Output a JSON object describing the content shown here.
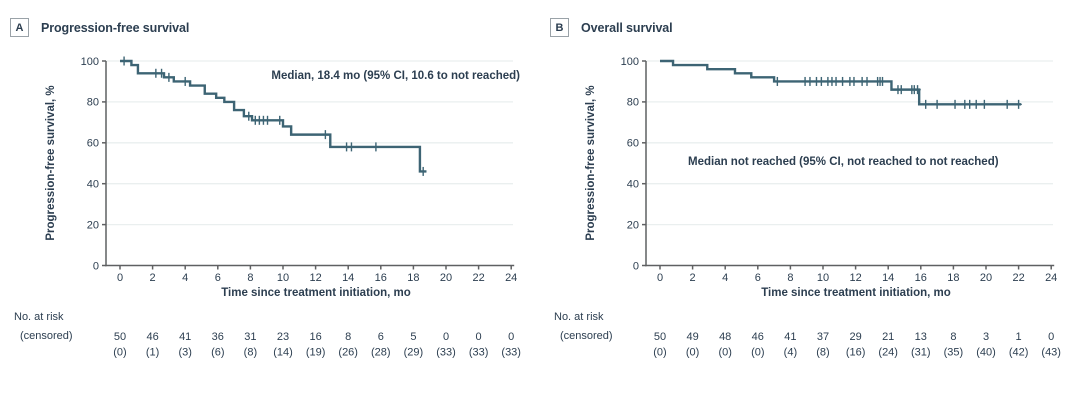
{
  "chart_data": [
    {
      "type": "line",
      "subtype": "kaplan-meier-step",
      "panel_label": "A",
      "title": "Progression-free survival",
      "annotation": "Median, 18.4 mo (95% CI, 10.6 to not reached)",
      "ylabel": "Progression-free survival, %",
      "xlabel": "Time since treatment initiation, mo",
      "xlim": [
        0,
        24
      ],
      "ylim": [
        0,
        100
      ],
      "xticks": [
        0,
        2,
        4,
        6,
        8,
        10,
        12,
        14,
        16,
        18,
        20,
        22,
        24
      ],
      "yticks": [
        0,
        20,
        40,
        60,
        80,
        100
      ],
      "grid": "horizontal-light",
      "line_color": "#3d6474",
      "steps": [
        [
          0,
          100
        ],
        [
          0.7,
          98
        ],
        [
          1.1,
          94
        ],
        [
          2.7,
          92
        ],
        [
          3.3,
          90
        ],
        [
          4.3,
          88
        ],
        [
          5.2,
          84
        ],
        [
          5.9,
          82
        ],
        [
          6.4,
          80
        ],
        [
          7.0,
          76
        ],
        [
          7.6,
          73
        ],
        [
          8.1,
          71
        ],
        [
          10.0,
          68
        ],
        [
          10.5,
          64
        ],
        [
          12.9,
          58
        ],
        [
          18.4,
          46
        ]
      ],
      "curve_end": 18.8,
      "censor_times": [
        0.25,
        2.2,
        2.55,
        3.0,
        4.0,
        7.9,
        8.3,
        8.55,
        8.8,
        9.05,
        9.8,
        12.6,
        13.9,
        14.2,
        15.7,
        18.6
      ],
      "risk_table": {
        "label_line1": "No. at risk",
        "label_line2": "(censored)",
        "times": [
          0,
          2,
          4,
          6,
          8,
          10,
          12,
          14,
          16,
          18,
          20,
          22,
          24
        ],
        "at_risk": [
          50,
          46,
          41,
          36,
          31,
          23,
          16,
          8,
          6,
          5,
          0,
          0,
          0
        ],
        "censored": [
          0,
          1,
          3,
          6,
          8,
          14,
          19,
          26,
          28,
          29,
          33,
          33,
          33
        ]
      }
    },
    {
      "type": "line",
      "subtype": "kaplan-meier-step",
      "panel_label": "B",
      "title": "Overall survival",
      "annotation": "Median not reached (95% CI, not reached to not reached)",
      "ylabel": "Progression-free survival, %",
      "xlabel": "Time since treatment initiation, mo",
      "xlim": [
        0,
        24
      ],
      "ylim": [
        0,
        100
      ],
      "xticks": [
        0,
        2,
        4,
        6,
        8,
        10,
        12,
        14,
        16,
        18,
        20,
        22,
        24
      ],
      "yticks": [
        0,
        20,
        40,
        60,
        80,
        100
      ],
      "grid": "horizontal-light",
      "line_color": "#3d6474",
      "steps": [
        [
          0,
          100
        ],
        [
          0.8,
          98
        ],
        [
          2.9,
          96
        ],
        [
          4.6,
          94
        ],
        [
          5.6,
          92
        ],
        [
          7.0,
          90
        ],
        [
          14.2,
          86
        ],
        [
          15.9,
          78.8
        ]
      ],
      "curve_end": 22.15,
      "censor_times": [
        7.2,
        8.9,
        9.2,
        9.6,
        9.9,
        10.3,
        10.55,
        10.8,
        11.2,
        11.65,
        11.9,
        12.4,
        12.7,
        13.35,
        13.5,
        13.65,
        14.6,
        14.8,
        15.45,
        15.6,
        15.8,
        16.3,
        17.0,
        18.1,
        18.7,
        19.0,
        19.4,
        19.9,
        21.3,
        22.0
      ],
      "risk_table": {
        "label_line1": "No. at risk",
        "label_line2": "(censored)",
        "times": [
          0,
          2,
          4,
          6,
          8,
          10,
          12,
          14,
          16,
          18,
          20,
          22,
          24
        ],
        "at_risk": [
          50,
          49,
          48,
          46,
          41,
          37,
          29,
          21,
          13,
          8,
          3,
          1,
          0
        ],
        "censored": [
          0,
          0,
          0,
          0,
          4,
          8,
          16,
          24,
          31,
          35,
          40,
          42,
          43
        ]
      }
    }
  ],
  "style": {
    "curve_color": "#3d6474",
    "text_color": "#2c3e50",
    "axis_color": "#5f6062",
    "grid_color": "#eaefef",
    "background": "#ffffff"
  }
}
